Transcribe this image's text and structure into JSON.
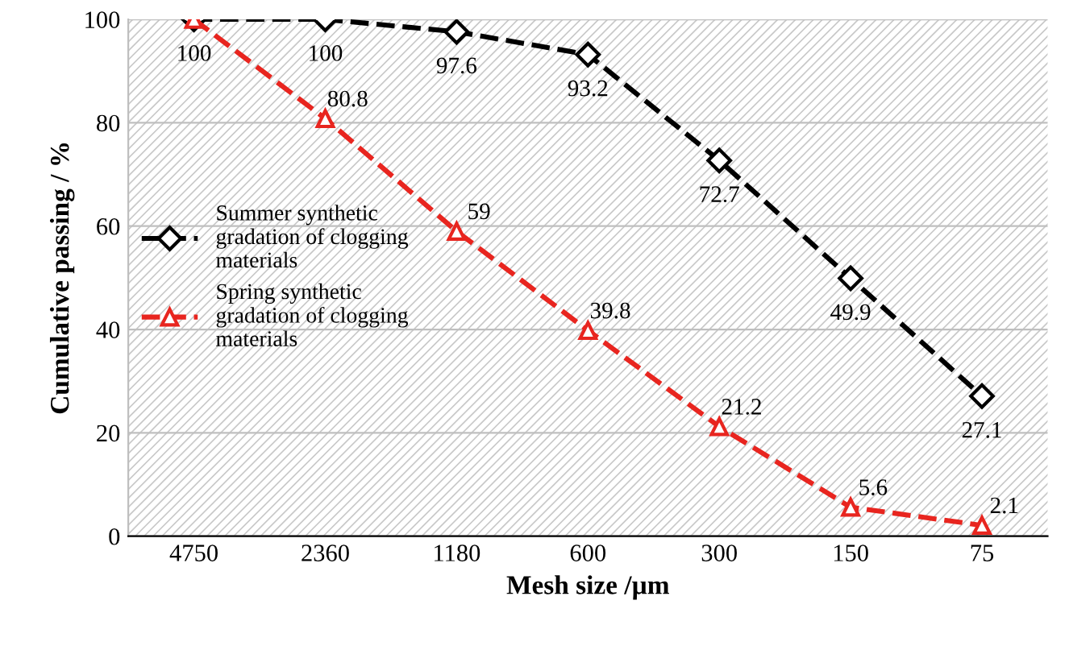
{
  "chart_data": {
    "type": "line",
    "xlabel": "Mesh size /µm",
    "ylabel": "Cumulative passing / %",
    "categories": [
      "4750",
      "2360",
      "1180",
      "600",
      "300",
      "150",
      "75"
    ],
    "series": [
      {
        "name": "Summer synthetic\ngradation of clogging\nmaterials",
        "color": "#000000",
        "marker": "diamond",
        "values": [
          100,
          100,
          97.6,
          93.2,
          72.7,
          49.9,
          27.1
        ],
        "value_labels": [
          "100",
          "100",
          "97.6",
          "93.2",
          "72.7",
          "49.9",
          "27.1"
        ]
      },
      {
        "name": "Spring synthetic\ngradation of clogging\nmaterials",
        "color": "#e8251f",
        "marker": "triangle",
        "values": [
          100,
          80.8,
          59,
          39.8,
          21.2,
          5.6,
          2.1
        ],
        "value_labels": [
          null,
          "80.8",
          "59",
          "39.8",
          "21.2",
          "5.6",
          "2.1"
        ]
      }
    ],
    "ylim": [
      0,
      100
    ],
    "yticks": [
      0,
      20,
      40,
      60,
      80,
      100
    ],
    "grid": "y",
    "legend": "left",
    "line_style": "dashed"
  }
}
